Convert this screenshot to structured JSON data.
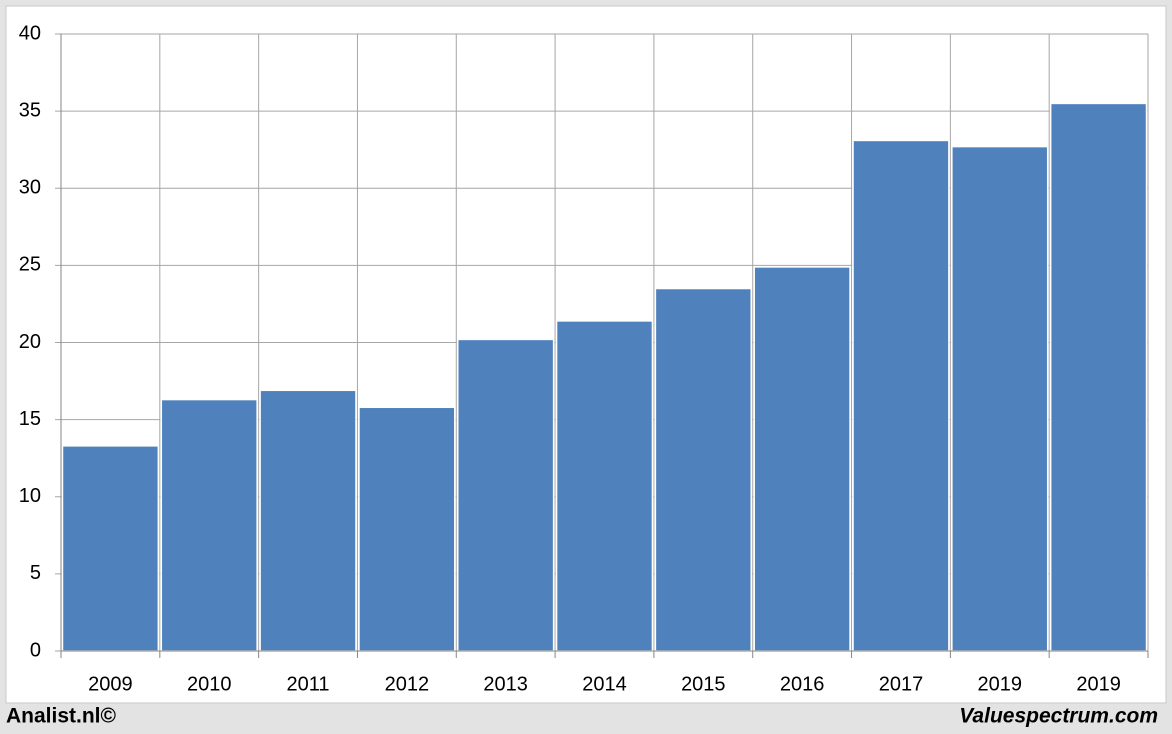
{
  "chart_data": {
    "type": "bar",
    "categories": [
      "2009",
      "2010",
      "2011",
      "2012",
      "2013",
      "2014",
      "2015",
      "2016",
      "2017",
      "2019",
      "2019"
    ],
    "values": [
      13.3,
      16.3,
      16.9,
      15.8,
      20.2,
      21.4,
      23.5,
      24.9,
      33.1,
      32.7,
      35.5
    ],
    "color": "#4f81bd",
    "ylim": [
      0,
      40
    ],
    "yticks": [
      0,
      5,
      10,
      15,
      20,
      25,
      30,
      35,
      40
    ],
    "grid": true
  },
  "footer": {
    "left": "Analist.nl©",
    "right": "Valuespectrum.com"
  }
}
